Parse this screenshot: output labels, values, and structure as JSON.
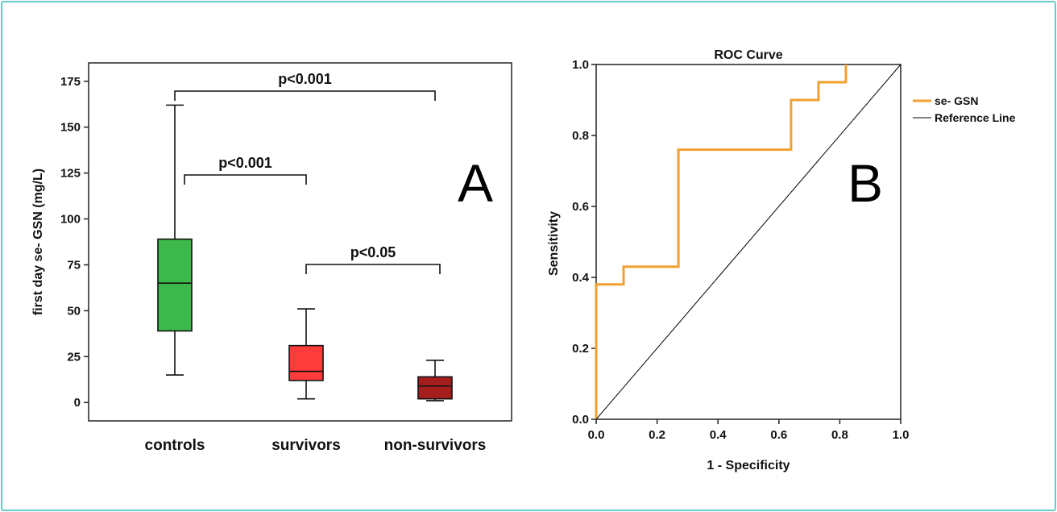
{
  "colors": {
    "frame": "#6cc7c9",
    "controls": "#3db84a",
    "survivors": "#ff3b3b",
    "non_survivors": "#a51e1e",
    "roc": "#f0a030",
    "reference": "#000000"
  },
  "panel_a": {
    "panel_letter": "A",
    "ylabel": "first day se- GSN (mg/L)",
    "yticks": [
      "0",
      "25",
      "50",
      "75",
      "100",
      "125",
      "150",
      "175"
    ],
    "categories": [
      "controls",
      "survivors",
      "non-survivors"
    ],
    "comparisons": [
      {
        "label": "p<0.001",
        "from": "controls",
        "to": "non-survivors"
      },
      {
        "label": "p<0.001",
        "from": "controls",
        "to": "survivors"
      },
      {
        "label": "p<0.05",
        "from": "survivors",
        "to": "non-survivors"
      }
    ]
  },
  "panel_b": {
    "panel_letter": "B",
    "title": "ROC Curve",
    "xlabel": "1 - Specificity",
    "ylabel": "Sensitivity",
    "xticks": [
      "0.0",
      "0.2",
      "0.4",
      "0.6",
      "0.8",
      "1.0"
    ],
    "yticks": [
      "0.0",
      "0.2",
      "0.4",
      "0.6",
      "0.8",
      "1.0"
    ],
    "legend": [
      "se- GSN",
      "Reference Line"
    ]
  },
  "chart_data": [
    {
      "type": "box",
      "ylabel": "first day se- GSN (mg/L)",
      "ylim": [
        -10,
        185
      ],
      "categories": [
        "controls",
        "survivors",
        "non-survivors"
      ],
      "boxes": [
        {
          "category": "controls",
          "min": 15,
          "q1": 39,
          "median": 65,
          "q3": 89,
          "max": 162
        },
        {
          "category": "survivors",
          "min": 2,
          "q1": 12,
          "median": 17,
          "q3": 31,
          "max": 51
        },
        {
          "category": "non-survivors",
          "min": 1,
          "q1": 2,
          "median": 9,
          "q3": 14,
          "max": 23
        }
      ],
      "annotations": [
        "p<0.001",
        "p<0.001",
        "p<0.05"
      ]
    },
    {
      "type": "line",
      "title": "ROC Curve",
      "xlabel": "1 - Specificity",
      "ylabel": "Sensitivity",
      "xlim": [
        0,
        1
      ],
      "ylim": [
        0,
        1
      ],
      "legend_position": "right",
      "series": [
        {
          "name": "se- GSN",
          "x": [
            0,
            0,
            0.09,
            0.09,
            0.27,
            0.27,
            0.64,
            0.64,
            0.73,
            0.73,
            0.82,
            0.82
          ],
          "y": [
            0,
            0.38,
            0.38,
            0.43,
            0.43,
            0.76,
            0.76,
            0.9,
            0.9,
            0.95,
            0.95,
            1.0
          ]
        },
        {
          "name": "Reference Line",
          "x": [
            0,
            1
          ],
          "y": [
            0,
            1
          ]
        }
      ]
    }
  ]
}
